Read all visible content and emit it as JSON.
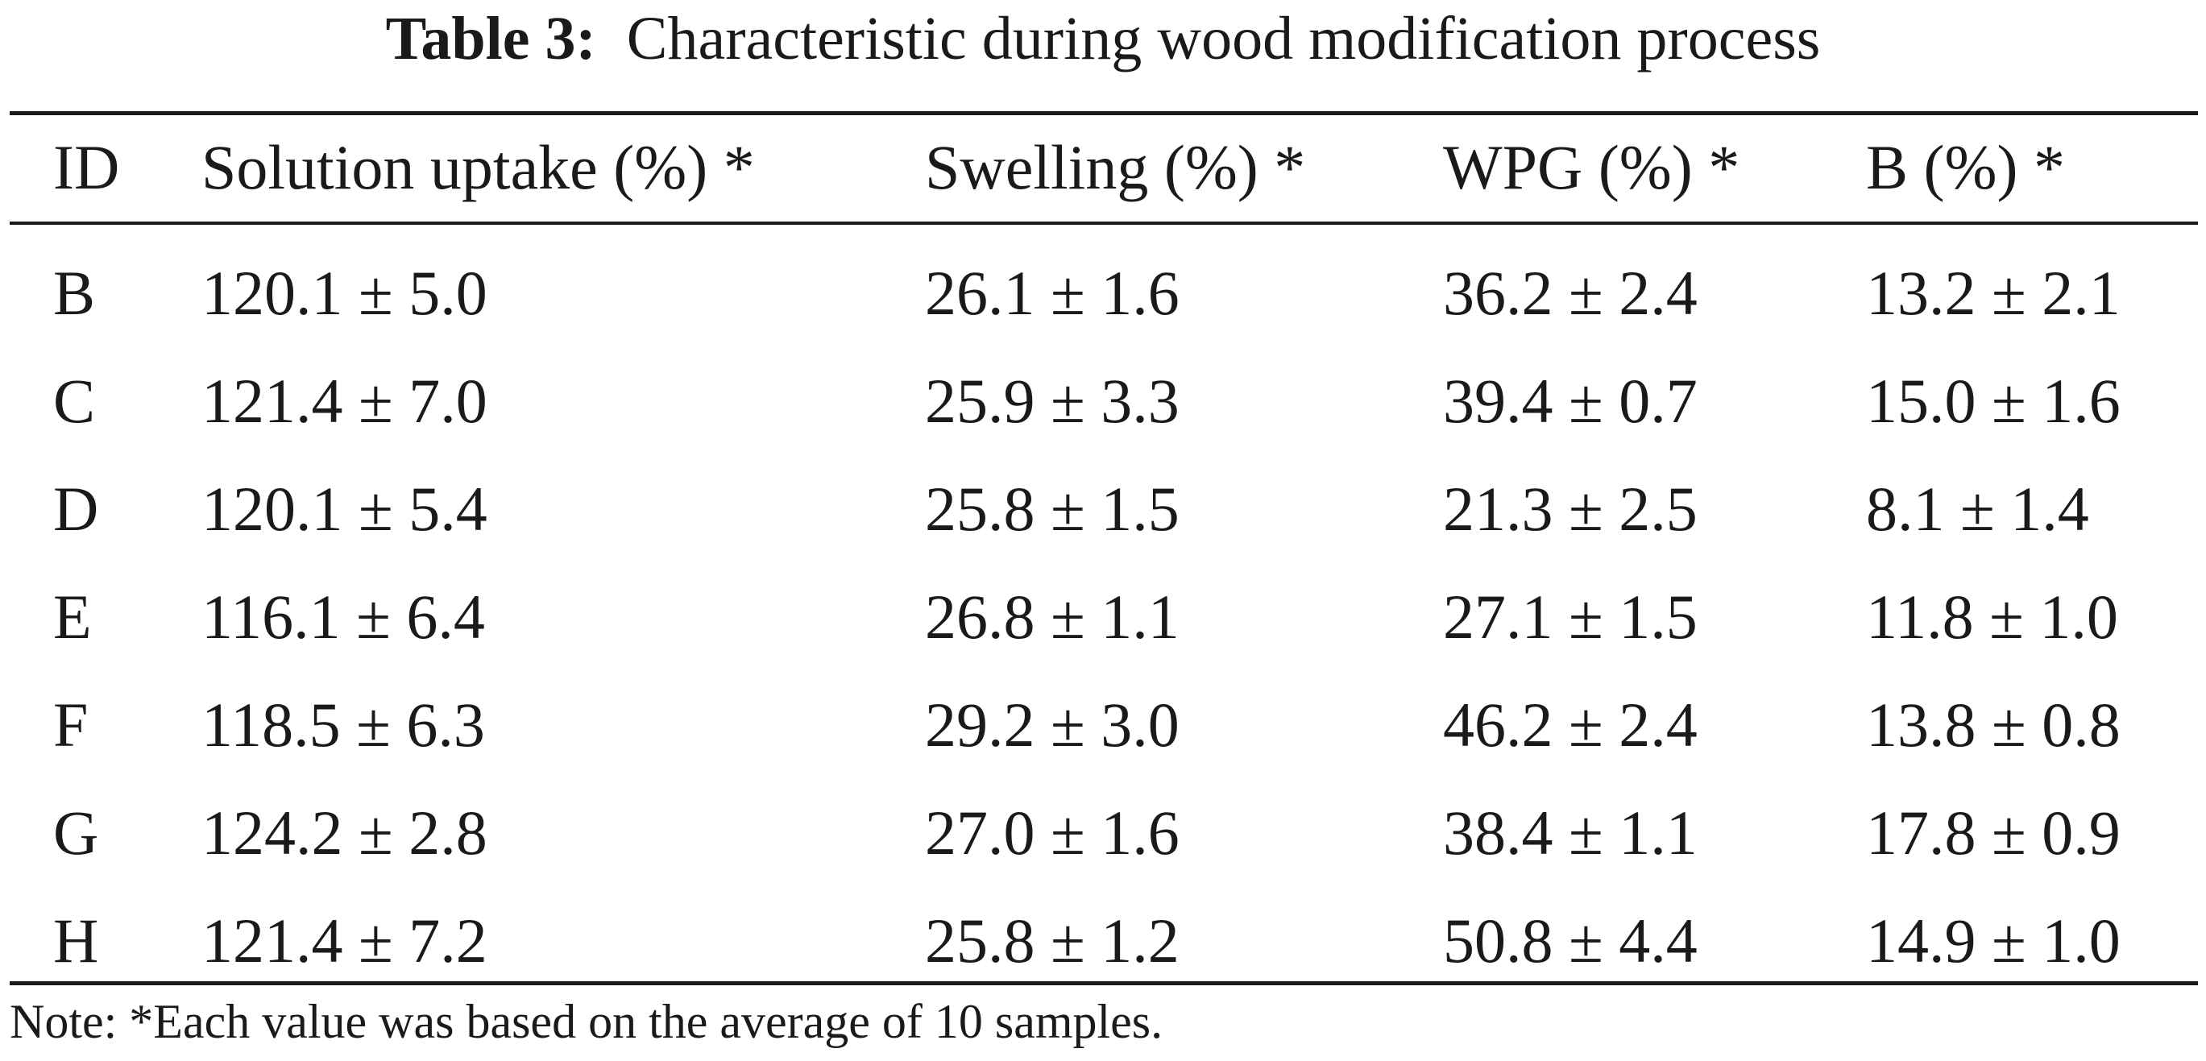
{
  "caption": {
    "label": "Table 3:",
    "text": "Characteristic during wood modification process"
  },
  "table": {
    "headers": [
      "ID",
      "Solution uptake (%) *",
      "Swelling (%) *",
      "WPG (%) *",
      "B (%) *"
    ],
    "rows": [
      [
        "B",
        "120.1 ± 5.0",
        "26.1 ± 1.6",
        "36.2 ± 2.4",
        "13.2 ± 2.1"
      ],
      [
        "C",
        "121.4 ± 7.0",
        "25.9 ± 3.3",
        "39.4 ± 0.7",
        "15.0 ± 1.6"
      ],
      [
        "D",
        "120.1 ± 5.4",
        "25.8 ± 1.5",
        "21.3 ± 2.5",
        "8.1 ± 1.4"
      ],
      [
        "E",
        "116.1 ± 6.4",
        "26.8 ± 1.1",
        "27.1 ± 1.5",
        "11.8 ± 1.0"
      ],
      [
        "F",
        "118.5 ± 6.3",
        "29.2 ± 3.0",
        "46.2 ± 2.4",
        "13.8 ± 0.8"
      ],
      [
        "G",
        "124.2 ± 2.8",
        "27.0 ± 1.6",
        "38.4 ± 1.1",
        "17.8 ± 0.9"
      ],
      [
        "H",
        "121.4 ± 7.2",
        "25.8 ± 1.2",
        "50.8 ± 4.4",
        "14.9 ± 1.0"
      ]
    ]
  },
  "note": "Note: *Each value was based on the average of 10 samples."
}
